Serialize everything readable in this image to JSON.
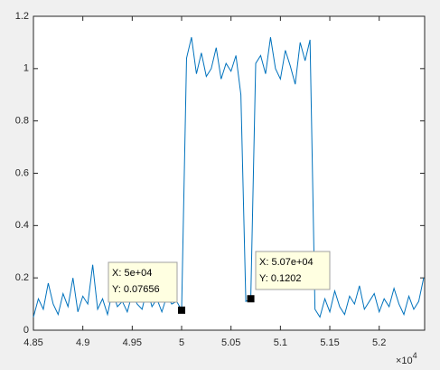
{
  "chart_data": {
    "type": "line",
    "x": [
      4.85,
      4.855,
      4.86,
      4.865,
      4.87,
      4.875,
      4.88,
      4.885,
      4.89,
      4.895,
      4.9,
      4.905,
      4.91,
      4.915,
      4.92,
      4.925,
      4.93,
      4.935,
      4.94,
      4.945,
      4.95,
      4.955,
      4.96,
      4.965,
      4.97,
      4.975,
      4.98,
      4.985,
      4.99,
      4.995,
      5,
      5.005,
      5.01,
      5.015,
      5.02,
      5.025,
      5.03,
      5.035,
      5.04,
      5.045,
      5.05,
      5.055,
      5.06,
      5.065,
      5.07,
      5.075,
      5.08,
      5.085,
      5.09,
      5.095,
      5.1,
      5.105,
      5.11,
      5.115,
      5.12,
      5.125,
      5.13,
      5.135,
      5.14,
      5.145,
      5.15,
      5.155,
      5.16,
      5.165,
      5.17,
      5.175,
      5.18,
      5.185,
      5.19,
      5.195,
      5.2,
      5.205,
      5.21,
      5.215,
      5.22,
      5.225,
      5.23,
      5.235,
      5.24,
      5.245
    ],
    "values": [
      0.05,
      0.12,
      0.08,
      0.18,
      0.1,
      0.06,
      0.14,
      0.09,
      0.2,
      0.07,
      0.13,
      0.1,
      0.25,
      0.08,
      0.12,
      0.06,
      0.15,
      0.09,
      0.11,
      0.07,
      0.14,
      0.1,
      0.08,
      0.16,
      0.09,
      0.12,
      0.07,
      0.13,
      0.1,
      0.11,
      0.07656,
      1.04,
      1.12,
      0.98,
      1.06,
      0.97,
      1.0,
      1.08,
      0.96,
      1.02,
      0.99,
      1.05,
      0.9,
      0.11,
      0.1202,
      1.02,
      1.05,
      0.98,
      1.12,
      1.0,
      0.96,
      1.07,
      1.01,
      0.94,
      1.1,
      1.03,
      1.11,
      0.08,
      0.05,
      0.12,
      0.07,
      0.15,
      0.09,
      0.06,
      0.13,
      0.1,
      0.17,
      0.08,
      0.11,
      0.14,
      0.07,
      0.12,
      0.09,
      0.16,
      0.1,
      0.06,
      0.13,
      0.08,
      0.11,
      0.2
    ],
    "color": "#0072bd",
    "xlim": [
      4.85,
      5.246
    ],
    "xticks": [
      4.85,
      4.9,
      4.95,
      5,
      5.05,
      5.1,
      5.15,
      5.2
    ],
    "ylim": [
      0,
      1.2
    ],
    "yticks": [
      0,
      0.2,
      0.4,
      0.6,
      0.8,
      1,
      1.2
    ],
    "x_multiplier": {
      "base": "×10",
      "exponent": "4"
    },
    "datatips": [
      {
        "x": 5,
        "y": 0.07656,
        "x_label": "X: 5e+04",
        "y_label": "Y: 0.07656"
      },
      {
        "x": 5.07,
        "y": 0.1202,
        "x_label": "X: 5.07e+04",
        "y_label": "Y: 0.1202"
      }
    ]
  }
}
